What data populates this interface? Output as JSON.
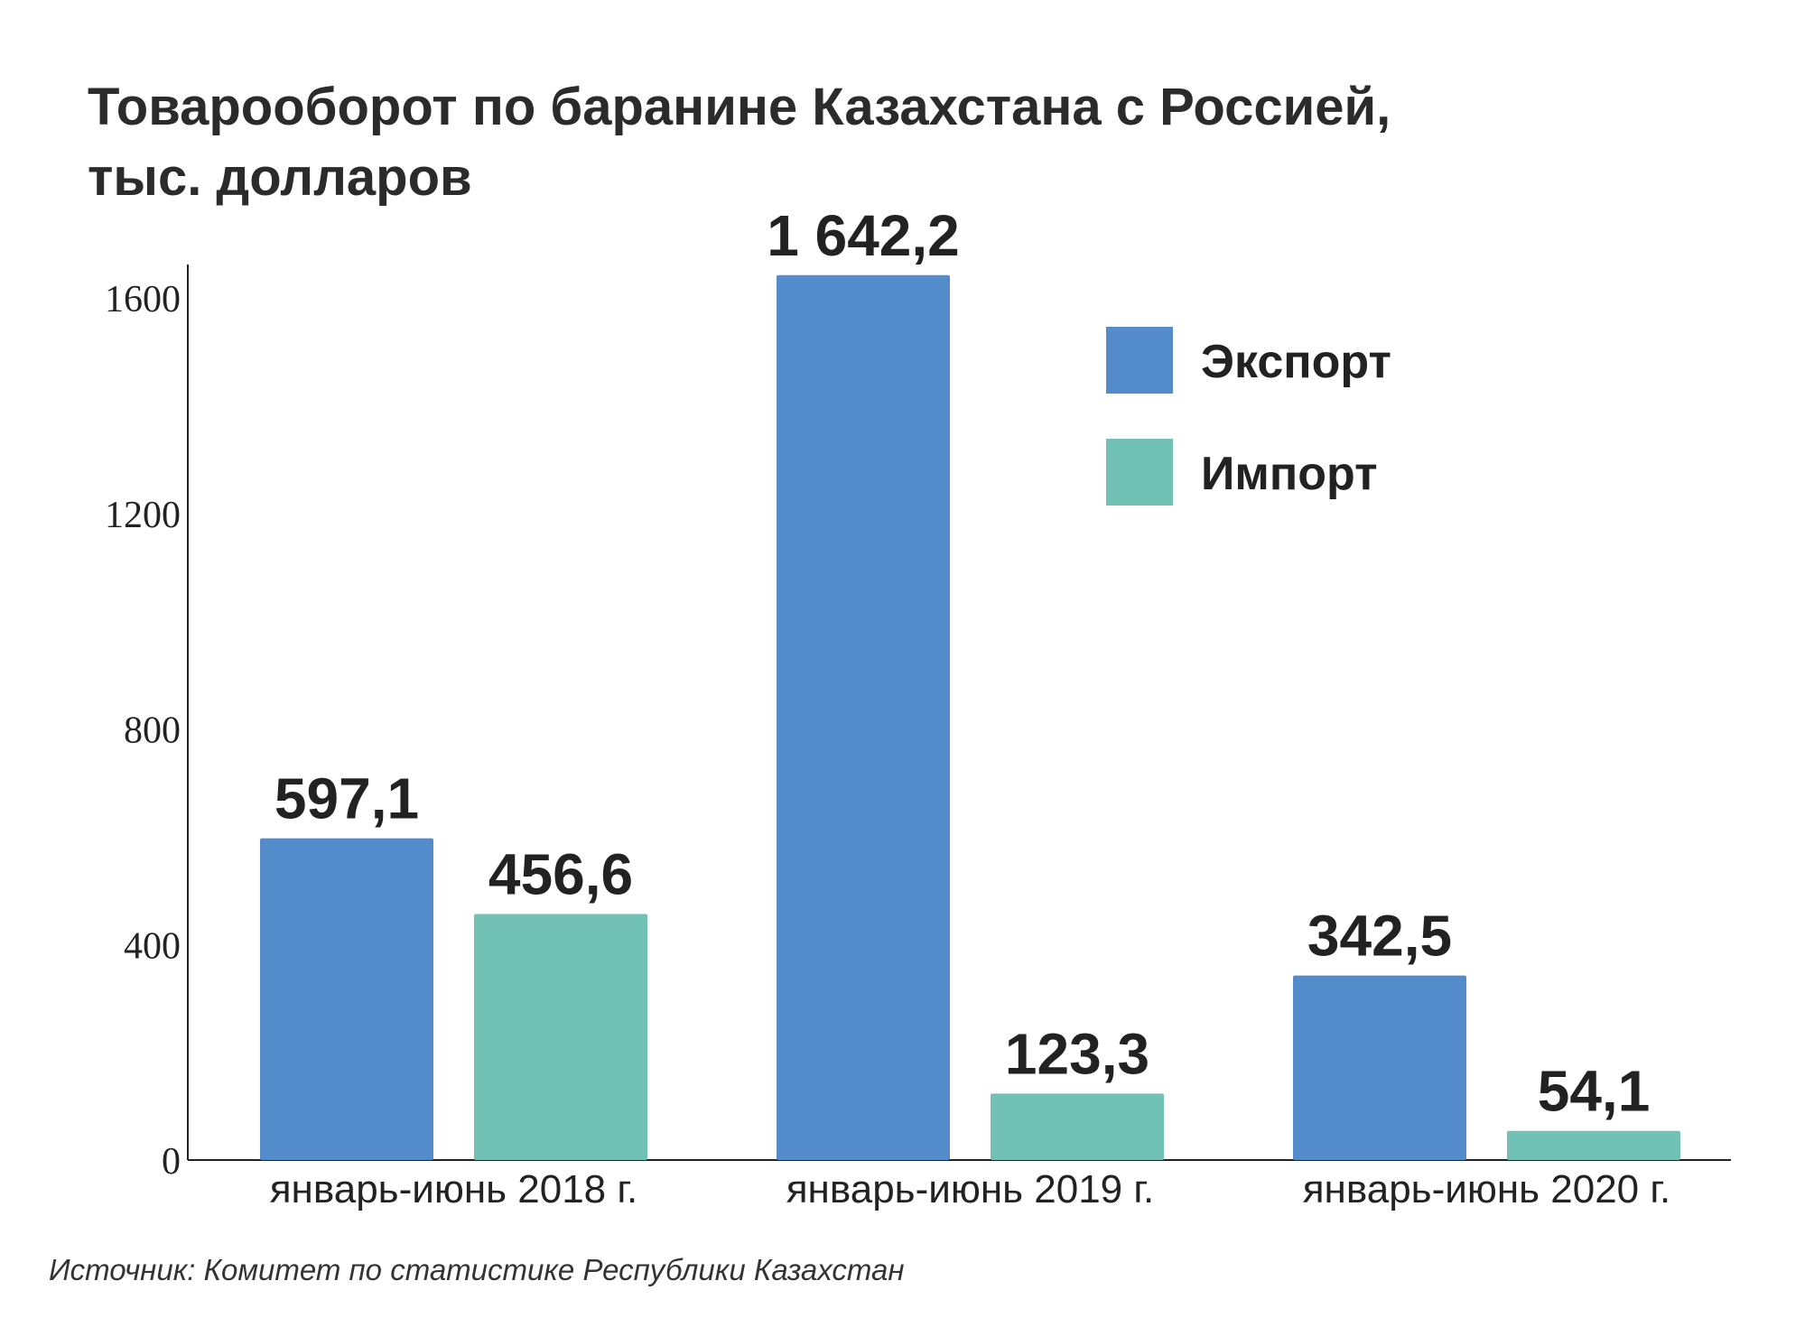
{
  "chart_data": {
    "type": "bar",
    "title_lines": [
      "Товарооборот по баранине Казахстана с Россией,",
      "тыс. долларов"
    ],
    "categories": [
      "январь-июнь 2018 г.",
      "январь-июнь 2019 г.",
      "январь-июнь 2020 г."
    ],
    "series": [
      {
        "name": "Экспорт",
        "color": "#548bcb",
        "values": [
          597.1,
          1642.2,
          342.5
        ],
        "labels": [
          "597,1",
          "1 642,2",
          "342,5"
        ]
      },
      {
        "name": "Импорт",
        "color": "#71c2b4",
        "values": [
          456.6,
          123.3,
          54.1
        ],
        "labels": [
          "456,6",
          "123,3",
          "54,1"
        ]
      }
    ],
    "yticks": [
      0,
      400,
      800,
      1200,
      1600
    ],
    "ylim": [
      0,
      1600
    ],
    "legend_position": "top-right",
    "grid": false
  },
  "source": "Источник: Комитет по статистике Республики Казахстан"
}
